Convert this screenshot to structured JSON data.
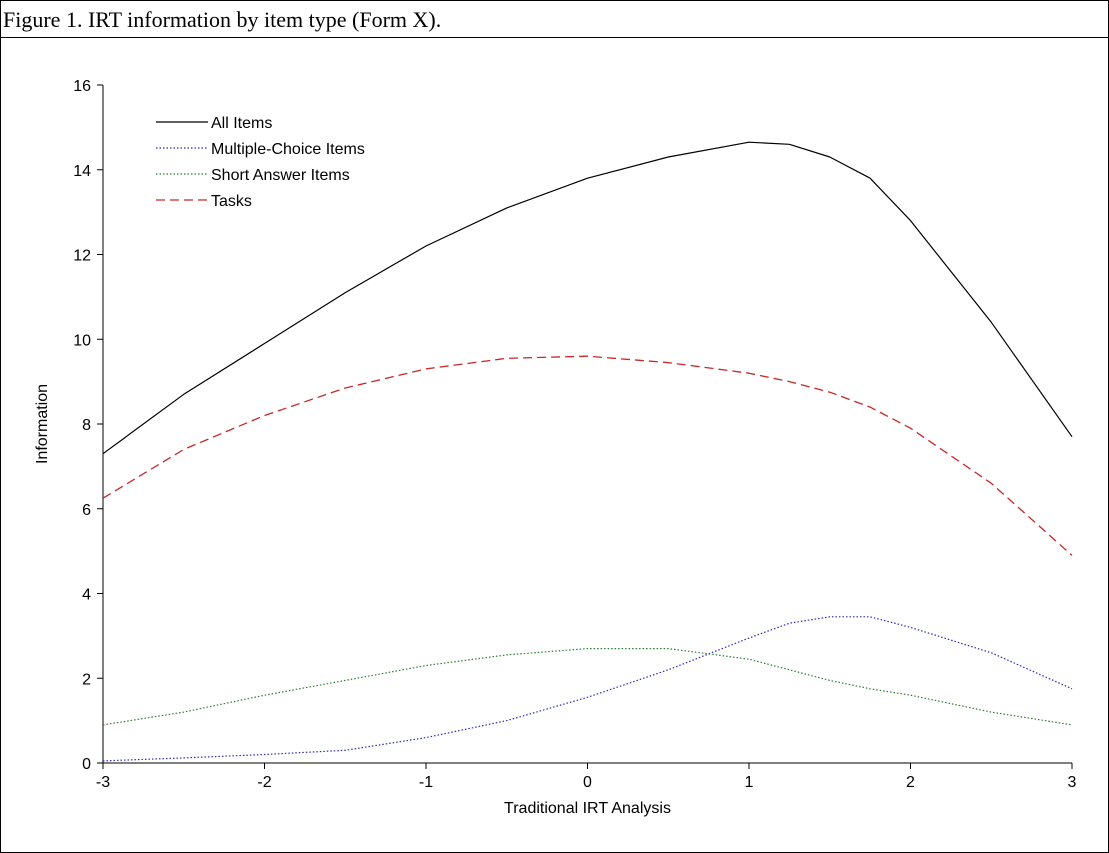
{
  "figure": {
    "caption": "Figure 1. IRT information by item type (Form X)."
  },
  "chart_data": {
    "type": "line",
    "xlabel": "Traditional IRT Analysis",
    "ylabel": "Information",
    "xlim": [
      -3,
      3
    ],
    "ylim": [
      0,
      16
    ],
    "x_ticks": [
      -3,
      -2,
      -1,
      0,
      1,
      2,
      3
    ],
    "y_ticks": [
      0,
      2,
      4,
      6,
      8,
      10,
      12,
      14,
      16
    ],
    "grid": false,
    "legend_position": "top-left",
    "x": [
      -3,
      -2.5,
      -2,
      -1.5,
      -1,
      -0.5,
      0,
      0.5,
      1,
      1.25,
      1.5,
      1.75,
      2,
      2.5,
      3
    ],
    "series": [
      {
        "name": "All Items",
        "color": "#000000",
        "style": "solid",
        "values": [
          7.3,
          8.7,
          9.9,
          11.1,
          12.2,
          13.1,
          13.8,
          14.3,
          14.65,
          14.6,
          14.3,
          13.8,
          12.8,
          10.4,
          7.7
        ]
      },
      {
        "name": "Multiple-Choice Items",
        "color": "#2a2ab8",
        "style": "dotted",
        "values": [
          0.05,
          0.12,
          0.2,
          0.3,
          0.6,
          1.0,
          1.55,
          2.2,
          2.95,
          3.3,
          3.45,
          3.45,
          3.2,
          2.6,
          1.75
        ]
      },
      {
        "name": "Short Answer Items",
        "color": "#2e7d32",
        "style": "dotted",
        "values": [
          0.9,
          1.2,
          1.6,
          1.95,
          2.3,
          2.55,
          2.7,
          2.7,
          2.45,
          2.2,
          1.95,
          1.75,
          1.6,
          1.2,
          0.9
        ]
      },
      {
        "name": "Tasks",
        "color": "#c62828",
        "style": "dashed",
        "values": [
          6.25,
          7.4,
          8.2,
          8.85,
          9.3,
          9.55,
          9.6,
          9.45,
          9.2,
          9.0,
          8.75,
          8.4,
          7.9,
          6.6,
          4.9
        ]
      }
    ]
  }
}
